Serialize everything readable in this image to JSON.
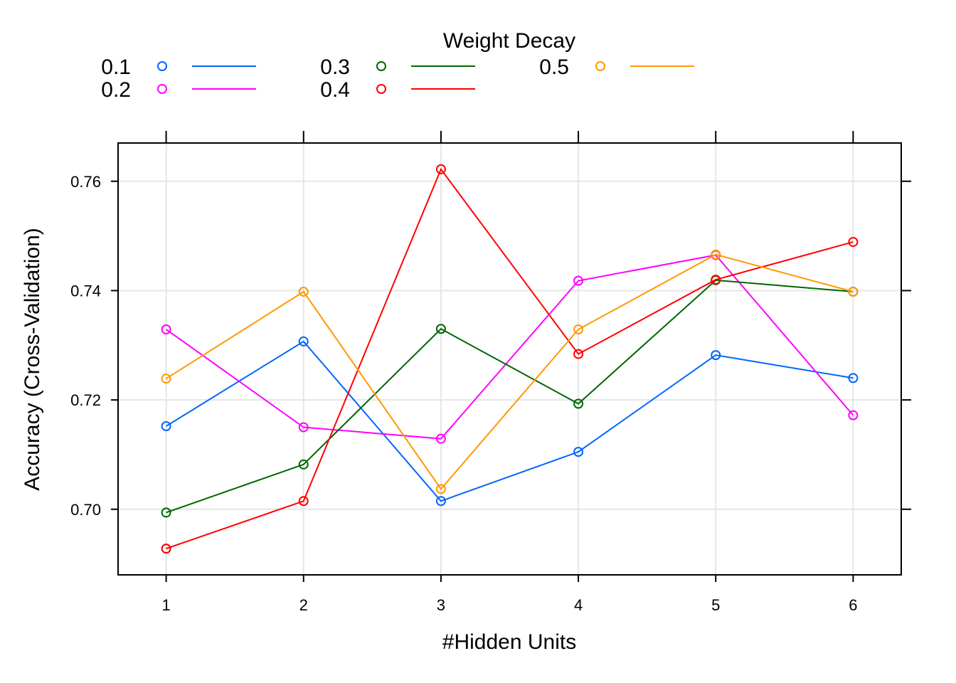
{
  "chart_data": {
    "type": "line",
    "xlabel": "#Hidden Units",
    "ylabel": "Accuracy (Cross-Validation)",
    "x": [
      1,
      2,
      3,
      4,
      5,
      6
    ],
    "x_ticks": [
      "1",
      "2",
      "3",
      "4",
      "5",
      "6"
    ],
    "y_ticks": [
      "0.70",
      "0.72",
      "0.74",
      "0.76"
    ],
    "xlim": [
      0.65,
      6.35
    ],
    "ylim": [
      0.688,
      0.767
    ],
    "grid": true,
    "legend": {
      "title": "Weight Decay",
      "placement": "top",
      "columns": 3
    },
    "series": [
      {
        "name": "0.1",
        "color": "#0066ff",
        "values": [
          0.7152,
          0.7307,
          0.7015,
          0.7105,
          0.7282,
          0.724
        ]
      },
      {
        "name": "0.2",
        "color": "#ff00ff",
        "values": [
          0.7329,
          0.715,
          0.7129,
          0.7418,
          0.7465,
          0.7172
        ]
      },
      {
        "name": "0.3",
        "color": "#006600",
        "values": [
          0.6994,
          0.7082,
          0.733,
          0.7193,
          0.7419,
          0.7398
        ]
      },
      {
        "name": "0.4",
        "color": "#ff0000",
        "values": [
          0.6928,
          0.7015,
          0.7622,
          0.7284,
          0.742,
          0.7489
        ]
      },
      {
        "name": "0.5",
        "color": "#ff9900",
        "values": [
          0.7239,
          0.7398,
          0.7037,
          0.7329,
          0.7466,
          0.7398
        ]
      }
    ]
  }
}
